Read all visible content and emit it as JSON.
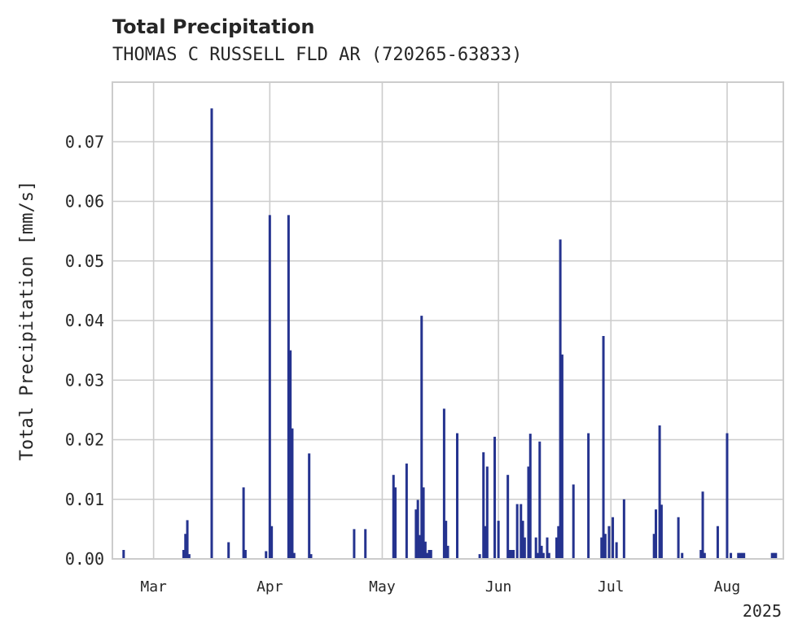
{
  "chart_data": {
    "type": "bar",
    "title": "Total Precipitation",
    "subtitle": "THOMAS C RUSSELL FLD AR (720265-63833)",
    "xlabel": "",
    "ylabel": "Total Precipitation [mm/s]",
    "year_label": "2025",
    "ylim": [
      0,
      0.08
    ],
    "yticks": [
      "0.00",
      "0.01",
      "0.02",
      "0.03",
      "0.04",
      "0.05",
      "0.06",
      "0.07"
    ],
    "xticks": [
      {
        "label": "Mar",
        "date": "2025-03-01"
      },
      {
        "label": "Apr",
        "date": "2025-04-01"
      },
      {
        "label": "May",
        "date": "2025-05-01"
      },
      {
        "label": "Jun",
        "date": "2025-06-01"
      },
      {
        "label": "Jul",
        "date": "2025-07-01"
      },
      {
        "label": "Aug",
        "date": "2025-08-01"
      }
    ],
    "xlim": [
      "2025-02-18",
      "2025-08-16"
    ],
    "grid": true,
    "color": "#25338f",
    "series": [
      {
        "x": [
          "2025-02-21T00:00",
          "2025-03-09T00:00",
          "2025-03-09T12:00",
          "2025-03-10T00:00",
          "2025-03-10T12:00",
          "2025-03-16T12:00",
          "2025-03-21T00:00",
          "2025-03-25T00:00",
          "2025-03-25T12:00",
          "2025-03-31T00:00",
          "2025-04-01T00:00",
          "2025-04-01T12:00",
          "2025-04-06T00:00",
          "2025-04-06T12:00",
          "2025-04-07T00:00",
          "2025-04-07T12:00",
          "2025-04-11T12:00",
          "2025-04-12T00:00",
          "2025-04-23T12:00",
          "2025-04-26T12:00",
          "2025-05-04T00:00",
          "2025-05-04T12:00",
          "2025-05-07T12:00",
          "2025-05-10T00:00",
          "2025-05-10T12:00",
          "2025-05-11T00:00",
          "2025-05-11T12:00",
          "2025-05-12T00:00",
          "2025-05-12T12:00",
          "2025-05-13T00:00",
          "2025-05-13T12:00",
          "2025-05-14T00:00",
          "2025-05-17T12:00",
          "2025-05-18T00:00",
          "2025-05-18T12:00",
          "2025-05-21T00:00",
          "2025-05-27T00:00",
          "2025-05-28T00:00",
          "2025-05-28T12:00",
          "2025-05-29T00:00",
          "2025-05-31T00:00",
          "2025-06-01T00:00",
          "2025-06-03T12:00",
          "2025-06-04T00:00",
          "2025-06-04T12:00",
          "2025-06-05T00:00",
          "2025-06-06T00:00",
          "2025-06-07T00:00",
          "2025-06-07T12:00",
          "2025-06-08T00:00",
          "2025-06-09T00:00",
          "2025-06-09T12:00",
          "2025-06-11T00:00",
          "2025-06-11T12:00",
          "2025-06-12T00:00",
          "2025-06-12T12:00",
          "2025-06-13T00:00",
          "2025-06-14T00:00",
          "2025-06-14T12:00",
          "2025-06-16T12:00",
          "2025-06-17T00:00",
          "2025-06-17T12:00",
          "2025-06-18T00:00",
          "2025-06-21T00:00",
          "2025-06-25T00:00",
          "2025-06-28T12:00",
          "2025-06-29T00:00",
          "2025-06-29T12:00",
          "2025-06-30T12:00",
          "2025-07-01T12:00",
          "2025-07-02T12:00",
          "2025-07-04T12:00",
          "2025-07-12T12:00",
          "2025-07-13T00:00",
          "2025-07-14T00:00",
          "2025-07-14T12:00",
          "2025-07-19T00:00",
          "2025-07-20T00:00",
          "2025-07-25T00:00",
          "2025-07-25T12:00",
          "2025-07-26T00:00",
          "2025-07-29T12:00",
          "2025-08-01T00:00",
          "2025-08-02T00:00",
          "2025-08-04T00:00",
          "2025-08-04T12:00",
          "2025-08-05T00:00",
          "2025-08-05T12:00",
          "2025-08-13T00:00",
          "2025-08-13T12:00",
          "2025-08-14T00:00"
        ],
        "y": [
          0.0015,
          0.0015,
          0.0042,
          0.0065,
          0.0008,
          0.0756,
          0.0028,
          0.012,
          0.0015,
          0.0013,
          0.0577,
          0.0055,
          0.0577,
          0.035,
          0.0219,
          0.001,
          0.0177,
          0.0008,
          0.005,
          0.005,
          0.0141,
          0.012,
          0.016,
          0.0083,
          0.0099,
          0.004,
          0.0408,
          0.012,
          0.0029,
          0.001,
          0.0015,
          0.0015,
          0.0252,
          0.0064,
          0.0022,
          0.0211,
          0.0008,
          0.0179,
          0.0055,
          0.0155,
          0.0205,
          0.0064,
          0.0141,
          0.0015,
          0.0015,
          0.0015,
          0.0092,
          0.0092,
          0.0064,
          0.0036,
          0.0155,
          0.021,
          0.0036,
          0.001,
          0.0197,
          0.0022,
          0.001,
          0.0036,
          0.001,
          0.0036,
          0.0055,
          0.0536,
          0.0343,
          0.0125,
          0.0211,
          0.0036,
          0.0374,
          0.0042,
          0.0055,
          0.007,
          0.0028,
          0.01,
          0.0042,
          0.0083,
          0.0224,
          0.0091,
          0.007,
          0.001,
          0.0015,
          0.0113,
          0.001,
          0.0055,
          0.0211,
          0.001,
          0.001,
          0.001,
          0.001,
          0.001,
          0.001,
          0.001,
          0.001
        ]
      }
    ]
  }
}
